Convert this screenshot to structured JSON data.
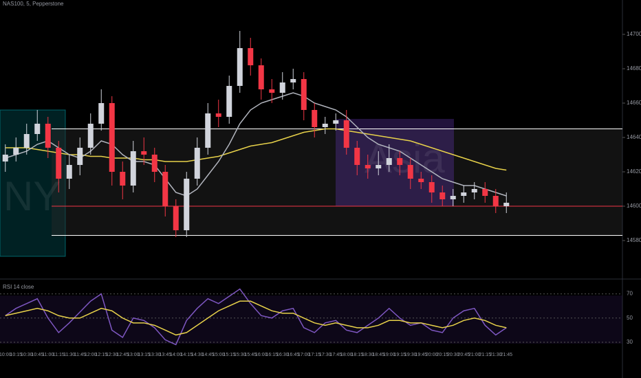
{
  "chart_data": [
    {
      "type": "candlestick",
      "title": "NAS100, 5, Pepperstone",
      "sessions": [
        "NY",
        "Asia"
      ],
      "categories": [
        "10:00",
        "10:15",
        "10:30",
        "10:45",
        "11:00",
        "11:15",
        "11:30",
        "11:45",
        "12:00",
        "12:15",
        "12:30",
        "12:45",
        "13:00",
        "13:15",
        "13:30",
        "13:45",
        "14:00",
        "14:15",
        "14:30",
        "14:45",
        "15:00",
        "15:15",
        "15:30",
        "15:45",
        "16:00",
        "16:15",
        "16:30",
        "16:45",
        "17:00",
        "17:15",
        "17:30",
        "17:45",
        "18:00",
        "18:15",
        "18:30",
        "18:45",
        "19:00",
        "19:15",
        "19:30",
        "19:45",
        "20:00",
        "20:15",
        "20:30",
        "20:45",
        "21:00",
        "21:15",
        "21:30",
        "21:45"
      ],
      "open": [
        14626,
        14630,
        14634,
        14642,
        14648,
        14634,
        14616,
        14624,
        14634,
        14648,
        14660,
        14620,
        14612,
        14632,
        14630,
        14620,
        14600,
        14586,
        14616,
        14634,
        14654,
        14652,
        14670,
        14692,
        14682,
        14668,
        14666,
        14672,
        14674,
        14656,
        14646,
        14648,
        14650,
        14634,
        14624,
        14622,
        14624,
        14628,
        14624,
        14616,
        14614,
        14608,
        14604,
        14606,
        14608,
        14610,
        14606,
        14600
      ],
      "high": [
        14636,
        14640,
        14648,
        14656,
        14652,
        14638,
        14630,
        14640,
        14654,
        14668,
        14664,
        14626,
        14638,
        14640,
        14634,
        14624,
        14604,
        14620,
        14640,
        14660,
        14662,
        14676,
        14702,
        14698,
        14686,
        14674,
        14678,
        14680,
        14678,
        14660,
        14652,
        14654,
        14656,
        14638,
        14630,
        14632,
        14636,
        14632,
        14628,
        14620,
        14618,
        14612,
        14610,
        14612,
        14614,
        14614,
        14610,
        14608
      ],
      "low": [
        14620,
        14626,
        14630,
        14638,
        14628,
        14608,
        14610,
        14618,
        14630,
        14644,
        14612,
        14604,
        14608,
        14624,
        14614,
        14594,
        14582,
        14582,
        14612,
        14630,
        14646,
        14648,
        14666,
        14676,
        14662,
        14660,
        14662,
        14668,
        14650,
        14640,
        14642,
        14644,
        14630,
        14618,
        14616,
        14618,
        14620,
        14618,
        14610,
        14610,
        14602,
        14600,
        14600,
        14602,
        14604,
        14602,
        14596,
        14596
      ],
      "close": [
        14630,
        14634,
        14642,
        14648,
        14634,
        14616,
        14624,
        14634,
        14648,
        14660,
        14620,
        14612,
        14632,
        14630,
        14620,
        14600,
        14586,
        14616,
        14634,
        14654,
        14652,
        14670,
        14692,
        14682,
        14668,
        14666,
        14672,
        14674,
        14656,
        14646,
        14648,
        14650,
        14634,
        14624,
        14622,
        14624,
        14628,
        14624,
        14616,
        14614,
        14608,
        14604,
        14606,
        14608,
        14610,
        14606,
        14600,
        14602
      ],
      "up_color": "#d1d4dc",
      "down_color": "#f23645",
      "series": [
        {
          "color": "#e8d24a",
          "values": [
            14634,
            14634,
            14634,
            14633,
            14632,
            14631,
            14630,
            14630,
            14629,
            14629,
            14628,
            14628,
            14628,
            14627,
            14627,
            14626,
            14626,
            14626,
            14627,
            14628,
            14629,
            14631,
            14633,
            14635,
            14636,
            14637,
            14639,
            14641,
            14643,
            14644,
            14645,
            14645,
            14644,
            14643,
            14642,
            14641,
            14640,
            14639,
            14638,
            14636,
            14634,
            14632,
            14630,
            14628,
            14626,
            14624,
            14622,
            14621
          ]
        },
        {
          "color": "#b2b5be",
          "values": [
            14628,
            14630,
            14632,
            14636,
            14638,
            14634,
            14630,
            14628,
            14632,
            14638,
            14636,
            14630,
            14626,
            14626,
            14624,
            14616,
            14608,
            14606,
            14610,
            14618,
            14626,
            14636,
            14648,
            14656,
            14660,
            14662,
            14664,
            14666,
            14664,
            14660,
            14658,
            14656,
            14652,
            14646,
            14640,
            14636,
            14634,
            14632,
            14628,
            14624,
            14620,
            14616,
            14614,
            14612,
            14612,
            14610,
            14608,
            14606
          ]
        }
      ],
      "levels": [
        {
          "value": 14645,
          "color": "#ffffff"
        },
        {
          "value": 14583,
          "color": "#ffffff"
        },
        {
          "value": 14600,
          "color": "#f23645"
        }
      ],
      "ylim": [
        14560,
        14720
      ],
      "yticks": [
        14580,
        14600,
        14620,
        14640,
        14660,
        14680,
        14700
      ]
    },
    {
      "type": "line",
      "title": "RSI 14 close",
      "series": [
        {
          "color": "#7e57c2",
          "values": [
            52,
            58,
            62,
            66,
            50,
            38,
            46,
            55,
            64,
            70,
            40,
            34,
            50,
            48,
            42,
            32,
            28,
            48,
            58,
            66,
            62,
            68,
            74,
            62,
            52,
            50,
            56,
            58,
            42,
            38,
            46,
            48,
            40,
            38,
            44,
            50,
            58,
            50,
            44,
            46,
            40,
            38,
            50,
            56,
            58,
            44,
            36,
            42
          ]
        },
        {
          "color": "#e8d24a",
          "values": [
            52,
            54,
            56,
            58,
            56,
            52,
            50,
            50,
            54,
            58,
            56,
            50,
            46,
            46,
            44,
            40,
            36,
            38,
            44,
            50,
            56,
            60,
            64,
            64,
            60,
            56,
            54,
            54,
            50,
            46,
            44,
            46,
            44,
            42,
            42,
            44,
            48,
            48,
            46,
            46,
            44,
            42,
            44,
            48,
            50,
            48,
            44,
            42
          ]
        }
      ],
      "ylim": [
        26,
        80
      ],
      "yticks": [
        30,
        50,
        70
      ]
    }
  ]
}
